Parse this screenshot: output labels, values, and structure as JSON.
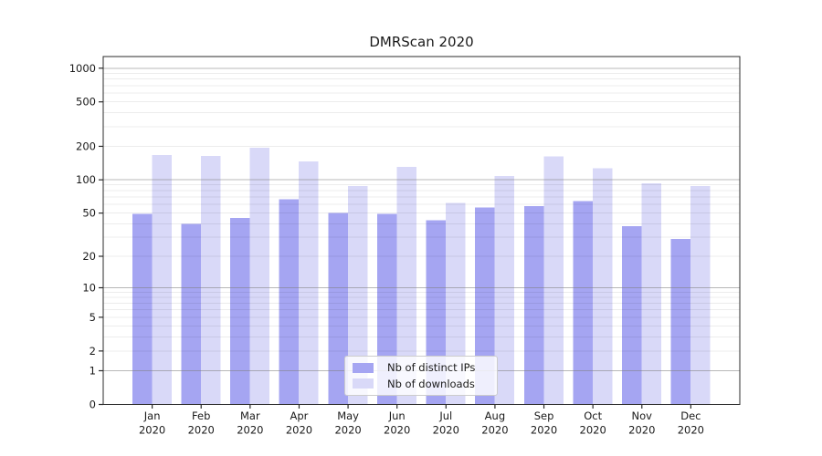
{
  "chart_data": {
    "type": "bar",
    "title": "DMRScan 2020",
    "xlabel": "",
    "ylabel": "",
    "categories": [
      "Jan 2020",
      "Feb 2020",
      "Mar 2020",
      "Apr 2020",
      "May 2020",
      "Jun 2020",
      "Jul 2020",
      "Aug 2020",
      "Sep 2020",
      "Oct 2020",
      "Nov 2020",
      "Dec 2020"
    ],
    "series": [
      {
        "name": "Nb of distinct IPs",
        "color": "#a5a5f2",
        "values": [
          49,
          40,
          45,
          67,
          50,
          49,
          43,
          56,
          58,
          64,
          38,
          29
        ]
      },
      {
        "name": "Nb of downloads",
        "color": "#d9d9f8",
        "values": [
          167,
          164,
          194,
          147,
          88,
          131,
          62,
          108,
          163,
          127,
          93,
          88
        ]
      }
    ],
    "yscale": "symlog-log1p",
    "yticks": [
      0,
      1,
      2,
      5,
      10,
      20,
      50,
      100,
      200,
      500,
      1000
    ],
    "ylim": [
      0,
      1270
    ],
    "grid": "major and minor horizontal gridlines",
    "legend_position": "lower center"
  },
  "colors": {
    "background": "#ffffff",
    "text": "#1a1a1a",
    "spine": "#2b2b2b",
    "grid_major": "#7d7d7d",
    "grid_minor": "#000000",
    "bar_distinct_ips": "#a5a5f2",
    "bar_downloads": "#d9d9f8"
  }
}
